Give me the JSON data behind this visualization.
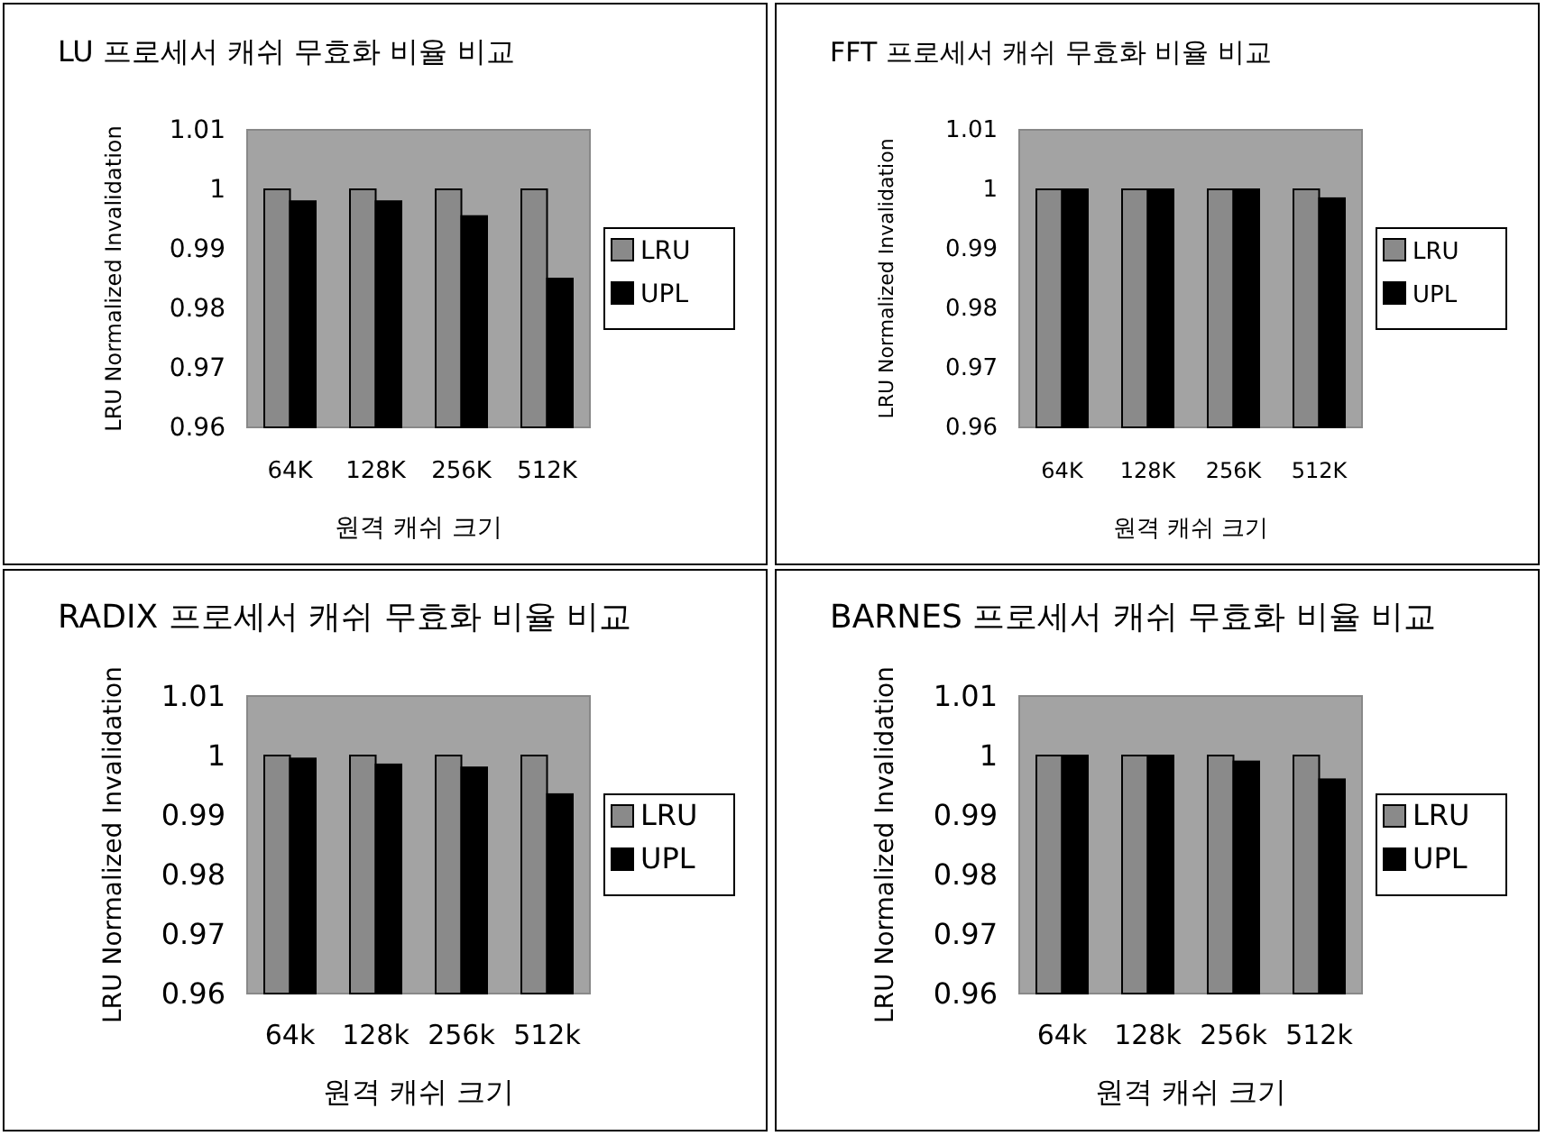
{
  "chart_data": [
    {
      "type": "bar",
      "title": "LU 프로세서 캐쉬 무효화 비율 비교",
      "xlabel": "원격 캐쉬 크기",
      "ylabel": "LRU Normalized Invalidation",
      "categories": [
        "64K",
        "128K",
        "256K",
        "512K"
      ],
      "series": [
        {
          "name": "LRU",
          "color": "#8a8a8a",
          "values": [
            1,
            1,
            1,
            1
          ]
        },
        {
          "name": "UPL",
          "color": "#000000",
          "values": [
            0.998,
            0.998,
            0.9955,
            0.985
          ]
        }
      ],
      "ylim": [
        0.96,
        1.01
      ],
      "yticks": [
        0.96,
        0.97,
        0.98,
        0.99,
        1,
        1.01
      ],
      "grid": false,
      "legend": "right"
    },
    {
      "type": "bar",
      "title": "FFT 프로세서 캐쉬 무효화 비율 비교",
      "xlabel": "원격 캐쉬 크기",
      "ylabel": "LRU Normalized Invalidation",
      "categories": [
        "64K",
        "128K",
        "256K",
        "512K"
      ],
      "series": [
        {
          "name": "LRU",
          "color": "#8a8a8a",
          "values": [
            1,
            1,
            1,
            1
          ]
        },
        {
          "name": "UPL",
          "color": "#000000",
          "values": [
            1,
            1,
            1,
            0.9985
          ]
        }
      ],
      "ylim": [
        0.96,
        1.01
      ],
      "yticks": [
        0.96,
        0.97,
        0.98,
        0.99,
        1,
        1.01
      ],
      "grid": false,
      "legend": "right"
    },
    {
      "type": "bar",
      "title": "RADIX 프로세서 캐쉬 무효화 비율 비교",
      "xlabel": "원격 캐쉬 크기",
      "ylabel": "LRU Normalized Invalidation",
      "categories": [
        "64k",
        "128k",
        "256k",
        "512k"
      ],
      "series": [
        {
          "name": "LRU",
          "color": "#8a8a8a",
          "values": [
            1,
            1,
            1,
            1
          ]
        },
        {
          "name": "UPL",
          "color": "#000000",
          "values": [
            0.9995,
            0.9985,
            0.998,
            0.9935
          ]
        }
      ],
      "ylim": [
        0.96,
        1.01
      ],
      "yticks": [
        0.96,
        0.97,
        0.98,
        0.99,
        1,
        1.01
      ],
      "grid": false,
      "legend": "right"
    },
    {
      "type": "bar",
      "title": "BARNES 프로세서 캐쉬 무효화 비율 비교",
      "xlabel": "원격 캐쉬 크기",
      "ylabel": "LRU Normalized Invalidation",
      "categories": [
        "64k",
        "128k",
        "256k",
        "512k"
      ],
      "series": [
        {
          "name": "LRU",
          "color": "#8a8a8a",
          "values": [
            1,
            1,
            1,
            1
          ]
        },
        {
          "name": "UPL",
          "color": "#000000",
          "values": [
            1,
            1,
            0.999,
            0.996
          ]
        }
      ],
      "ylim": [
        0.96,
        1.01
      ],
      "yticks": [
        0.96,
        0.97,
        0.98,
        0.99,
        1,
        1.01
      ],
      "grid": false,
      "legend": "right"
    }
  ]
}
